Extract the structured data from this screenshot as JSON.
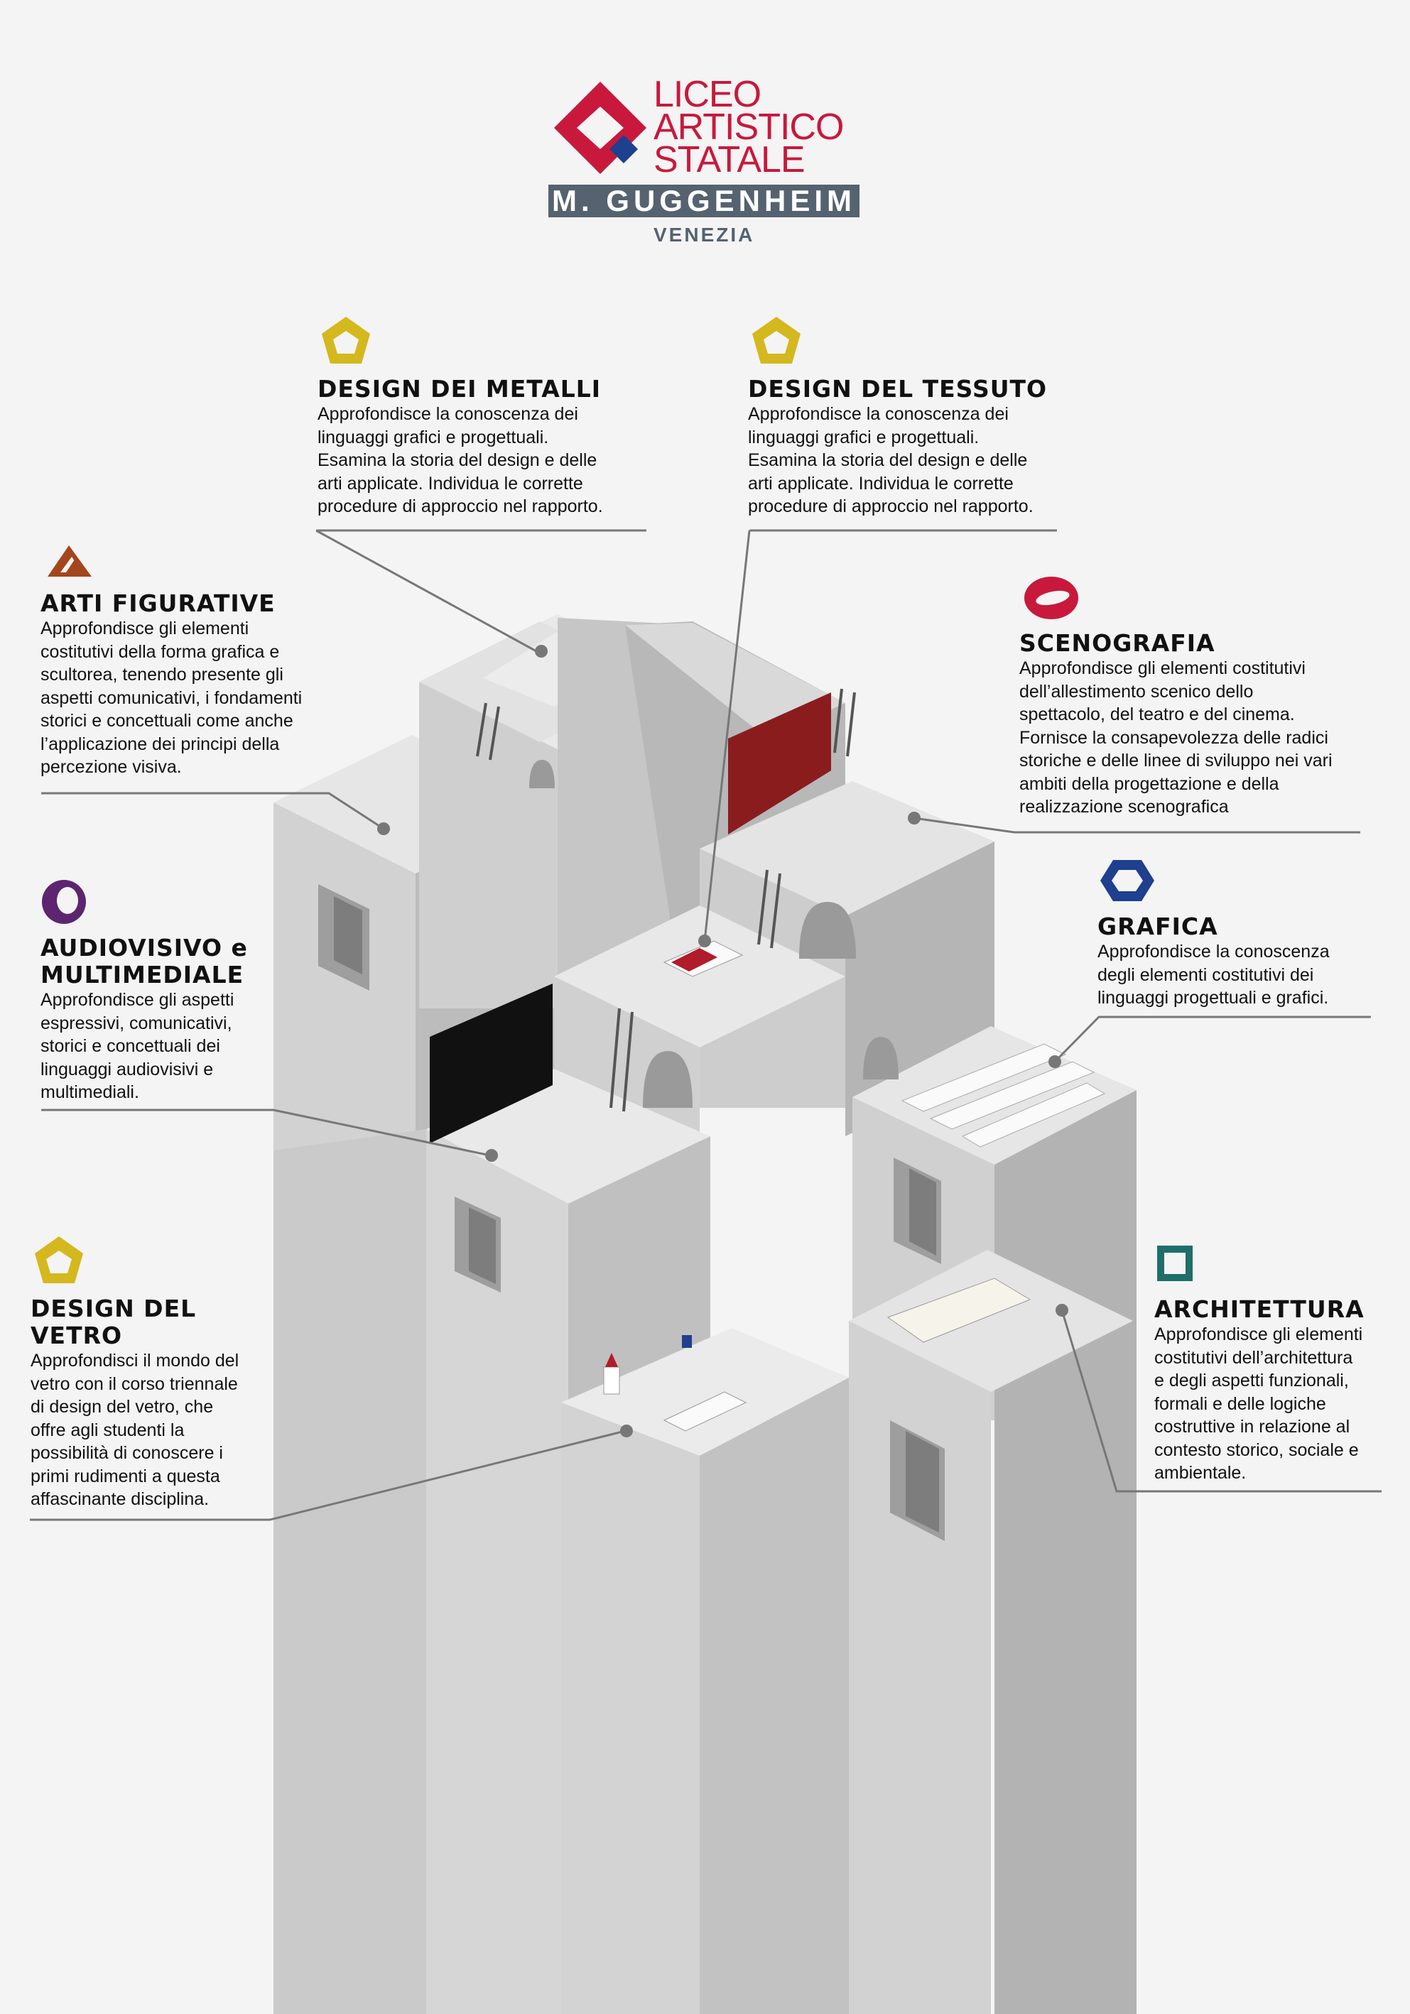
{
  "logo": {
    "line1": "LICEO",
    "line2": "ARTISTICO",
    "line3": "STATALE",
    "band": "M. GUGGENHEIM",
    "city": "VENEZIA",
    "colors": {
      "red": "#c8193c",
      "blue": "#1f3f8f",
      "slate": "#55626f"
    }
  },
  "sections": [
    {
      "id": "design-metalli",
      "icon": "yellow-pentagon-icon",
      "title": "DESIGN DEI METALLI",
      "text": "Approfondisce la conoscenza dei\nlinguaggi grafici e progettuali.\nEsamina la storia del design e delle\narti applicate. Individua le corrette\nprocedure di approccio nel rapporto."
    },
    {
      "id": "design-tessuto",
      "icon": "yellow-pentagon-icon",
      "title": "DESIGN DEL TESSUTO",
      "text": "Approfondisce la conoscenza dei\nlinguaggi grafici e progettuali.\nEsamina la storia del design e delle\narti applicate. Individua le corrette\nprocedure di approccio nel rapporto."
    },
    {
      "id": "arti-figurative",
      "icon": "brown-triangle-icon",
      "title": "ARTI FIGURATIVE",
      "text": "Approfondisce gli elementi\ncostitutivi della forma grafica e\nscultorea, tenendo presente gli\naspetti comunicativi, i fondamenti\nstorici e concettuali come anche\nl’applicazione dei principi della\npercezione visiva."
    },
    {
      "id": "scenografia",
      "icon": "red-ring-icon",
      "title": "SCENOGRAFIA",
      "text": "Approfondisce gli elementi costitutivi\ndell’allestimento scenico dello\nspettacolo, del teatro e del cinema.\nFornisce la consapevolezza delle radici\nstoriche e delle linee di sviluppo nei vari\nambiti della progettazione e della\nrealizzazione scenografica"
    },
    {
      "id": "audiovisivo",
      "icon": "purple-circle-icon",
      "title": "AUDIOVISIVO e\nMULTIMEDIALE",
      "text": "Approfondisce gli aspetti\nespressivi, comunicativi,\nstorici e concettuali dei\nlinguaggi audiovisivi e\nmultimediali."
    },
    {
      "id": "grafica",
      "icon": "blue-hexagon-icon",
      "title": "GRAFICA",
      "text": "Approfondisce la conoscenza\ndegli elementi costitutivi dei\nlinguaggi progettuali e grafici."
    },
    {
      "id": "design-vetro",
      "icon": "yellow-pentagon-icon",
      "title": "DESIGN DEL\nVETRO",
      "text": "Approfondisci il mondo del\nvetro con il corso triennale\ndi design del vetro, che\noffre agli studenti la\npossibilità di conoscere i\nprimi rudimenti a questa\naffascinante disciplina."
    },
    {
      "id": "architettura",
      "icon": "teal-square-icon",
      "title": "ARCHITETTURA",
      "text": "Approfondisce gli elementi\ncostitutivi dell’architettura\ne degli aspetti funzionali,\nformali e delle logiche\ncostruttive in relazione al\ncontesto storico, sociale e\nambientale."
    }
  ],
  "icon_colors": {
    "yellow": "#d4b81e",
    "brown": "#a4451c",
    "red": "#c8193c",
    "purple": "#5d2470",
    "blue": "#1f3f8f",
    "teal": "#1f6e6a"
  }
}
